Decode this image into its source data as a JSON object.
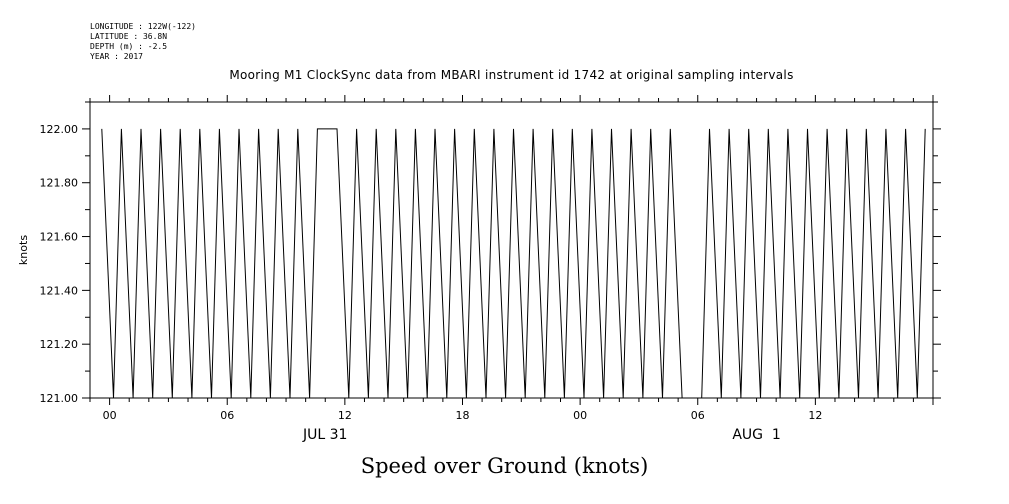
{
  "header": {
    "meta_lines": [
      "LONGITUDE : 122W(-122)",
      "LATITUDE : 36.8N",
      "DEPTH (m) : -2.5",
      "YEAR : 2017"
    ],
    "title": "Mooring M1 ClockSync data from MBARI instrument id 1742 at original sampling intervals",
    "caption": "Speed over Ground (knots)"
  },
  "chart_data": {
    "type": "line",
    "title": "Mooring M1 ClockSync data from MBARI instrument id 1742 at original sampling intervals",
    "ylabel": "knots",
    "xlabel": "",
    "ylim": [
      121.0,
      122.1
    ],
    "xlim_hours": [
      -1,
      42
    ],
    "x_units": "hours from 2017-07-31 00:00",
    "y_ticks": [
      "121.00",
      "121.20",
      "121.40",
      "121.60",
      "121.80",
      "122.00"
    ],
    "y_tick_values": [
      121.0,
      121.2,
      121.4,
      121.6,
      121.8,
      122.0
    ],
    "x_tick_labels": [
      {
        "h": 0,
        "label": "00"
      },
      {
        "h": 6,
        "label": "06"
      },
      {
        "h": 12,
        "label": "12"
      },
      {
        "h": 18,
        "label": "18"
      },
      {
        "h": 24,
        "label": "00"
      },
      {
        "h": 30,
        "label": "06"
      },
      {
        "h": 36,
        "label": "12"
      }
    ],
    "date_labels": [
      {
        "h": 11,
        "label": "JUL 31"
      },
      {
        "h": 33,
        "label": "AUG  1"
      }
    ],
    "grid": false,
    "series": [
      {
        "values": [
          [
            -0.4,
            122.0
          ],
          [
            0.2,
            121.0
          ],
          [
            0.6,
            122.0
          ],
          [
            1.2,
            121.0
          ],
          [
            1.6,
            122.0
          ],
          [
            2.2,
            121.0
          ],
          [
            2.6,
            122.0
          ],
          [
            3.2,
            121.0
          ],
          [
            3.6,
            122.0
          ],
          [
            4.2,
            121.0
          ],
          [
            4.6,
            122.0
          ],
          [
            5.2,
            121.0
          ],
          [
            5.6,
            122.0
          ],
          [
            6.2,
            121.0
          ],
          [
            6.6,
            122.0
          ],
          [
            7.2,
            121.0
          ],
          [
            7.6,
            122.0
          ],
          [
            8.2,
            121.0
          ],
          [
            8.6,
            122.0
          ],
          [
            9.2,
            121.0
          ],
          [
            9.6,
            122.0
          ],
          [
            10.2,
            121.0
          ],
          [
            10.6,
            122.0
          ],
          [
            11.6,
            122.0
          ],
          [
            12.2,
            121.0
          ],
          [
            12.6,
            122.0
          ],
          [
            13.2,
            121.0
          ],
          [
            13.6,
            122.0
          ],
          [
            14.2,
            121.0
          ],
          [
            14.6,
            122.0
          ],
          [
            15.2,
            121.0
          ],
          [
            15.6,
            122.0
          ],
          [
            16.2,
            121.0
          ],
          [
            16.6,
            122.0
          ],
          [
            17.2,
            121.0
          ],
          [
            17.6,
            122.0
          ],
          [
            18.2,
            121.0
          ],
          [
            18.6,
            122.0
          ],
          [
            19.2,
            121.0
          ],
          [
            19.6,
            122.0
          ],
          [
            20.2,
            121.0
          ],
          [
            20.6,
            122.0
          ],
          [
            21.2,
            121.0
          ],
          [
            21.6,
            122.0
          ],
          [
            22.2,
            121.0
          ],
          [
            22.6,
            122.0
          ],
          [
            23.2,
            121.0
          ],
          [
            23.6,
            122.0
          ],
          [
            24.2,
            121.0
          ],
          [
            24.6,
            122.0
          ],
          [
            25.2,
            121.0
          ],
          [
            25.6,
            122.0
          ],
          [
            26.2,
            121.0
          ],
          [
            26.6,
            122.0
          ],
          [
            27.2,
            121.0
          ],
          [
            27.6,
            122.0
          ],
          [
            28.2,
            121.0
          ],
          [
            28.6,
            122.0
          ],
          [
            29.2,
            121.0
          ],
          [
            30.2,
            121.0
          ],
          [
            30.6,
            122.0
          ],
          [
            31.2,
            121.0
          ],
          [
            31.6,
            122.0
          ],
          [
            32.2,
            121.0
          ],
          [
            32.6,
            122.0
          ],
          [
            33.2,
            121.0
          ],
          [
            33.6,
            122.0
          ],
          [
            34.2,
            121.0
          ],
          [
            34.6,
            122.0
          ],
          [
            35.2,
            121.0
          ],
          [
            35.6,
            122.0
          ],
          [
            36.2,
            121.0
          ],
          [
            36.6,
            122.0
          ],
          [
            37.2,
            121.0
          ],
          [
            37.6,
            122.0
          ],
          [
            38.2,
            121.0
          ],
          [
            38.6,
            122.0
          ],
          [
            39.2,
            121.0
          ],
          [
            39.6,
            122.0
          ],
          [
            40.2,
            121.0
          ],
          [
            40.6,
            122.0
          ],
          [
            41.2,
            121.0
          ],
          [
            41.6,
            122.0
          ]
        ]
      }
    ]
  }
}
